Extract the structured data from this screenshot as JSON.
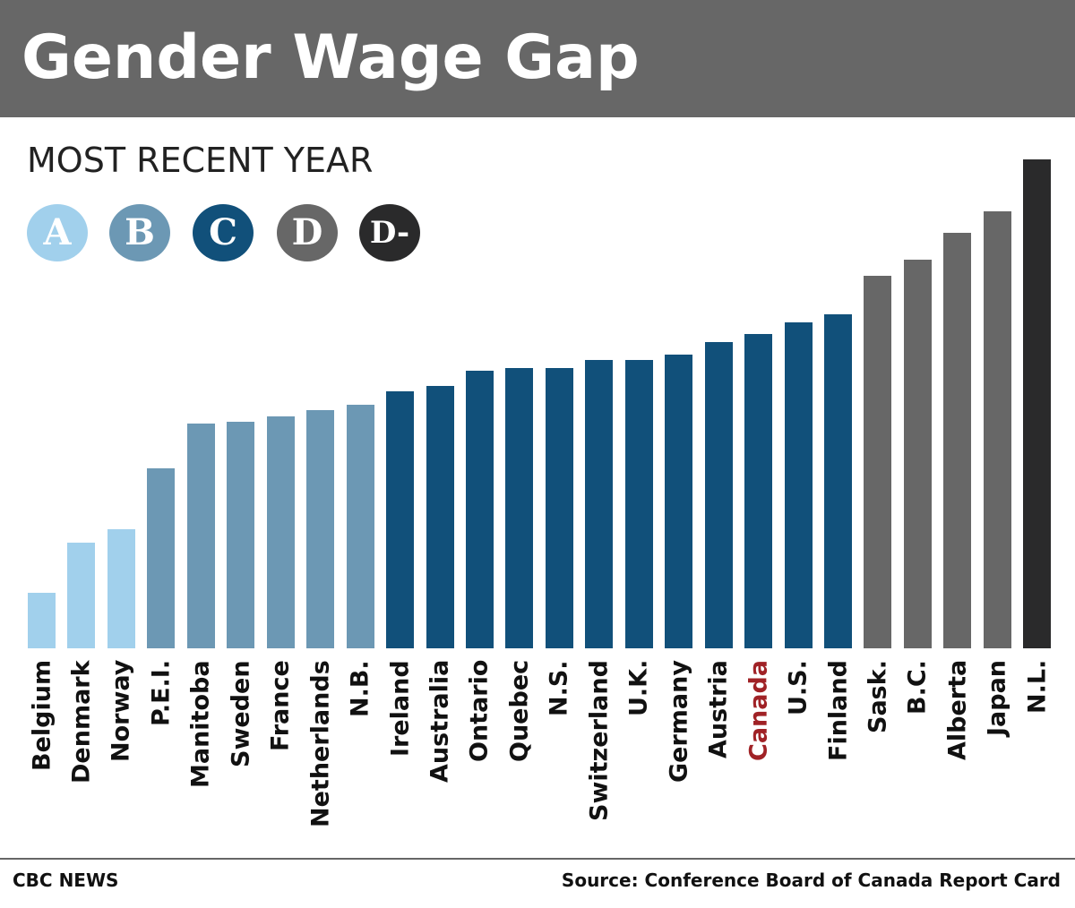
{
  "header": {
    "title": "Gender Wage Gap"
  },
  "chart_data": {
    "type": "bar",
    "title": "Gender Wage Gap",
    "subtitle": "MOST RECENT YEAR",
    "xlabel": "",
    "ylabel": "",
    "ylim": [
      0,
      100
    ],
    "grid": false,
    "legend": [
      {
        "label": "A",
        "color": "#a1d0ec"
      },
      {
        "label": "B",
        "color": "#6c98b4"
      },
      {
        "label": "C",
        "color": "#11507a"
      },
      {
        "label": "D",
        "color": "#676767"
      },
      {
        "label": "D-",
        "color": "#2a2a2b"
      }
    ],
    "categories": [
      "Belgium",
      "Denmark",
      "Norway",
      "P.E.I.",
      "Manitoba",
      "Sweden",
      "France",
      "Netherlands",
      "N.B.",
      "Ireland",
      "Australia",
      "Ontario",
      "Quebec",
      "N.S.",
      "Switzerland",
      "U.K.",
      "Germany",
      "Austria",
      "Canada",
      "U.S.",
      "Finland",
      "Sask.",
      "B.C.",
      "Alberta",
      "Japan",
      "N.L."
    ],
    "values": [
      11.3,
      21.6,
      24.4,
      36.9,
      45.9,
      46.4,
      47.5,
      48.8,
      49.9,
      52.6,
      53.7,
      56.8,
      57.3,
      57.3,
      59.0,
      59.0,
      60.1,
      62.7,
      64.2,
      66.7,
      68.4,
      76.1,
      79.4,
      85.0,
      89.4,
      100.0
    ],
    "grades": [
      "A",
      "A",
      "A",
      "B",
      "B",
      "B",
      "B",
      "B",
      "B",
      "C",
      "C",
      "C",
      "C",
      "C",
      "C",
      "C",
      "C",
      "C",
      "C",
      "C",
      "C",
      "D",
      "D",
      "D",
      "D",
      "D-"
    ],
    "highlight": {
      "category": "Canada",
      "color": "#a02226"
    }
  },
  "footer": {
    "left": "CBC NEWS",
    "right": "Source: Conference Board of Canada Report Card"
  }
}
